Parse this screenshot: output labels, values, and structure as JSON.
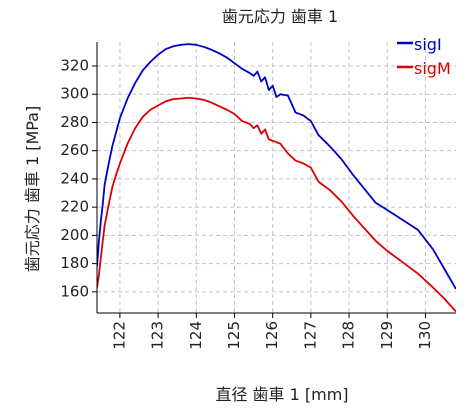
{
  "chart_data": {
    "type": "line",
    "title": "歯元応力 歯車 1",
    "xlabel": "直径 歯車 1 [mm]",
    "ylabel": "歯元応力 歯車 1 [MPa]",
    "xlim": [
      121.4,
      130.8
    ],
    "ylim": [
      145,
      337
    ],
    "xticks": [
      122,
      123,
      124,
      125,
      126,
      127,
      128,
      129,
      130
    ],
    "yticks": [
      160,
      180,
      200,
      220,
      240,
      260,
      280,
      300,
      320
    ],
    "grid": true,
    "legend_position": "top-right",
    "series": [
      {
        "name": "sigI",
        "color": "#0000cc",
        "x": [
          121.4,
          121.45,
          121.5,
          121.55,
          121.6,
          121.7,
          121.8,
          121.9,
          122.0,
          122.2,
          122.4,
          122.6,
          122.8,
          123.0,
          123.2,
          123.4,
          123.6,
          123.8,
          124.0,
          124.2,
          124.4,
          124.6,
          124.8,
          125.0,
          125.2,
          125.4,
          125.5,
          125.6,
          125.7,
          125.8,
          125.9,
          126.0,
          126.1,
          126.2,
          126.4,
          126.6,
          126.8,
          127.0,
          127.2,
          127.5,
          127.8,
          128.1,
          128.4,
          128.7,
          129.0,
          129.4,
          129.8,
          130.2,
          130.5,
          130.8
        ],
        "values": [
          178,
          196,
          210,
          222,
          236,
          250,
          263,
          273,
          283,
          297,
          308,
          317,
          323,
          328,
          332,
          334,
          335,
          335.5,
          335,
          333.5,
          331.5,
          329,
          326,
          322,
          318,
          315,
          313,
          316,
          309,
          312,
          303,
          306,
          298,
          300,
          299,
          287,
          285,
          281,
          271,
          263,
          254,
          243,
          233,
          223,
          218,
          211,
          204,
          190,
          176,
          162
        ]
      },
      {
        "name": "sigM",
        "color": "#dd0000",
        "x": [
          121.4,
          121.45,
          121.5,
          121.55,
          121.6,
          121.7,
          121.8,
          121.9,
          122.0,
          122.2,
          122.4,
          122.6,
          122.8,
          123.0,
          123.2,
          123.4,
          123.6,
          123.8,
          124.0,
          124.2,
          124.4,
          124.6,
          124.8,
          125.0,
          125.2,
          125.4,
          125.5,
          125.6,
          125.7,
          125.8,
          125.9,
          126.0,
          126.1,
          126.2,
          126.4,
          126.6,
          126.8,
          127.0,
          127.2,
          127.5,
          127.8,
          128.1,
          128.4,
          128.7,
          129.0,
          129.4,
          129.8,
          130.2,
          130.5,
          130.8
        ],
        "values": [
          163,
          172,
          184,
          196,
          207,
          221,
          234,
          243,
          251,
          265,
          276,
          284,
          289,
          292,
          295,
          296.5,
          297,
          297.5,
          297,
          296,
          294,
          291.5,
          289,
          286,
          281,
          279,
          276,
          278,
          272,
          275,
          268,
          267,
          266,
          265,
          258,
          253,
          251,
          248,
          238,
          232,
          224,
          214,
          205,
          196,
          189,
          181,
          173,
          163,
          155,
          146
        ]
      }
    ]
  }
}
